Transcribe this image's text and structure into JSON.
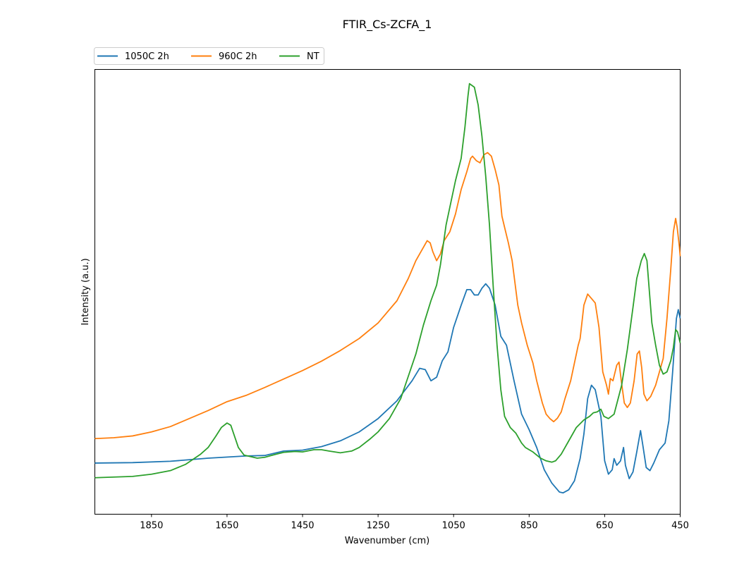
{
  "chart_data": {
    "type": "line",
    "title": "FTIR_Cs-ZCFA_1",
    "xlabel": "Wavenumber (cm)",
    "ylabel": "Intensity (a.u.)",
    "xlim": [
      2000,
      450
    ],
    "x_inverted": true,
    "ylim": [
      0,
      100
    ],
    "yticks_shown": false,
    "grid": false,
    "legend_position": "top-left, above plot",
    "xticks": [
      1850,
      1650,
      1450,
      1250,
      1050,
      850,
      650,
      450
    ],
    "series": [
      {
        "name": "1050C 2h",
        "color": "#1f77b4",
        "points": [
          [
            2000,
            11.5
          ],
          [
            1900,
            11.6
          ],
          [
            1800,
            11.9
          ],
          [
            1700,
            12.6
          ],
          [
            1600,
            13.1
          ],
          [
            1550,
            13.2
          ],
          [
            1500,
            14.2
          ],
          [
            1450,
            14.4
          ],
          [
            1400,
            15.2
          ],
          [
            1350,
            16.5
          ],
          [
            1300,
            18.5
          ],
          [
            1250,
            21.5
          ],
          [
            1200,
            25.5
          ],
          [
            1160,
            30.0
          ],
          [
            1140,
            32.8
          ],
          [
            1125,
            32.5
          ],
          [
            1110,
            30.0
          ],
          [
            1095,
            30.8
          ],
          [
            1080,
            34.5
          ],
          [
            1065,
            36.5
          ],
          [
            1050,
            42.0
          ],
          [
            1030,
            47.0
          ],
          [
            1015,
            50.5
          ],
          [
            1005,
            50.5
          ],
          [
            995,
            49.3
          ],
          [
            985,
            49.3
          ],
          [
            975,
            50.8
          ],
          [
            965,
            51.8
          ],
          [
            955,
            50.8
          ],
          [
            940,
            47.0
          ],
          [
            925,
            40.0
          ],
          [
            910,
            38.0
          ],
          [
            890,
            30.0
          ],
          [
            870,
            22.5
          ],
          [
            850,
            19.0
          ],
          [
            830,
            15.0
          ],
          [
            810,
            10.0
          ],
          [
            790,
            7.0
          ],
          [
            770,
            5.0
          ],
          [
            760,
            4.8
          ],
          [
            745,
            5.5
          ],
          [
            730,
            7.5
          ],
          [
            715,
            12.5
          ],
          [
            705,
            18.0
          ],
          [
            695,
            26.0
          ],
          [
            685,
            29.0
          ],
          [
            675,
            28.0
          ],
          [
            660,
            22.0
          ],
          [
            650,
            12.0
          ],
          [
            640,
            9.0
          ],
          [
            630,
            10.0
          ],
          [
            625,
            12.5
          ],
          [
            618,
            11.0
          ],
          [
            608,
            12.0
          ],
          [
            600,
            15.0
          ],
          [
            595,
            11.0
          ],
          [
            585,
            8.0
          ],
          [
            575,
            9.5
          ],
          [
            565,
            14.0
          ],
          [
            555,
            18.8
          ],
          [
            548,
            15.0
          ],
          [
            540,
            10.5
          ],
          [
            530,
            9.8
          ],
          [
            520,
            11.5
          ],
          [
            505,
            14.5
          ],
          [
            490,
            16.0
          ],
          [
            480,
            21.0
          ],
          [
            470,
            32.0
          ],
          [
            460,
            44.0
          ],
          [
            455,
            46.0
          ],
          [
            450,
            44.0
          ]
        ]
      },
      {
        "name": "960C 2h",
        "color": "#ff7f0e",
        "points": [
          [
            2000,
            17.0
          ],
          [
            1950,
            17.2
          ],
          [
            1900,
            17.6
          ],
          [
            1850,
            18.5
          ],
          [
            1800,
            19.7
          ],
          [
            1750,
            21.5
          ],
          [
            1700,
            23.3
          ],
          [
            1650,
            25.3
          ],
          [
            1600,
            26.7
          ],
          [
            1550,
            28.5
          ],
          [
            1500,
            30.4
          ],
          [
            1450,
            32.3
          ],
          [
            1400,
            34.4
          ],
          [
            1350,
            36.8
          ],
          [
            1300,
            39.5
          ],
          [
            1250,
            43.0
          ],
          [
            1200,
            48.0
          ],
          [
            1170,
            53.0
          ],
          [
            1150,
            57.0
          ],
          [
            1130,
            60.0
          ],
          [
            1120,
            61.5
          ],
          [
            1112,
            61.0
          ],
          [
            1105,
            59.0
          ],
          [
            1095,
            57.0
          ],
          [
            1085,
            58.5
          ],
          [
            1075,
            61.5
          ],
          [
            1060,
            63.5
          ],
          [
            1045,
            67.5
          ],
          [
            1030,
            73.0
          ],
          [
            1015,
            77.0
          ],
          [
            1005,
            80.0
          ],
          [
            1000,
            80.5
          ],
          [
            990,
            79.5
          ],
          [
            980,
            79.0
          ],
          [
            970,
            80.8
          ],
          [
            960,
            81.3
          ],
          [
            950,
            80.5
          ],
          [
            940,
            77.5
          ],
          [
            930,
            74.0
          ],
          [
            922,
            67.0
          ],
          [
            915,
            64.5
          ],
          [
            905,
            61.0
          ],
          [
            895,
            57.0
          ],
          [
            880,
            47.0
          ],
          [
            870,
            43.0
          ],
          [
            855,
            38.0
          ],
          [
            840,
            34.0
          ],
          [
            830,
            30.0
          ],
          [
            815,
            25.0
          ],
          [
            805,
            22.5
          ],
          [
            795,
            21.5
          ],
          [
            785,
            20.8
          ],
          [
            775,
            21.6
          ],
          [
            765,
            23.0
          ],
          [
            755,
            26.0
          ],
          [
            740,
            30.0
          ],
          [
            730,
            34.0
          ],
          [
            720,
            38.0
          ],
          [
            715,
            39.5
          ],
          [
            705,
            47.0
          ],
          [
            695,
            49.5
          ],
          [
            685,
            48.5
          ],
          [
            675,
            47.5
          ],
          [
            665,
            42.0
          ],
          [
            655,
            32.0
          ],
          [
            645,
            29.0
          ],
          [
            640,
            27.0
          ],
          [
            635,
            30.5
          ],
          [
            628,
            30.0
          ],
          [
            618,
            33.5
          ],
          [
            612,
            34.2
          ],
          [
            606,
            30.0
          ],
          [
            598,
            25.0
          ],
          [
            590,
            24.0
          ],
          [
            582,
            25.0
          ],
          [
            572,
            30.0
          ],
          [
            564,
            36.0
          ],
          [
            558,
            36.7
          ],
          [
            552,
            33.0
          ],
          [
            546,
            27.0
          ],
          [
            538,
            25.5
          ],
          [
            528,
            26.5
          ],
          [
            515,
            29.0
          ],
          [
            505,
            32.0
          ],
          [
            495,
            35.0
          ],
          [
            485,
            44.0
          ],
          [
            475,
            55.0
          ],
          [
            468,
            63.5
          ],
          [
            462,
            66.5
          ],
          [
            458,
            64.5
          ],
          [
            452,
            60.0
          ],
          [
            450,
            58.0
          ]
        ]
      },
      {
        "name": "NT",
        "color": "#2ca02c",
        "points": [
          [
            2000,
            8.2
          ],
          [
            1900,
            8.5
          ],
          [
            1850,
            9.0
          ],
          [
            1800,
            9.8
          ],
          [
            1760,
            11.2
          ],
          [
            1720,
            13.5
          ],
          [
            1700,
            15.0
          ],
          [
            1680,
            17.5
          ],
          [
            1665,
            19.5
          ],
          [
            1650,
            20.5
          ],
          [
            1640,
            20.0
          ],
          [
            1630,
            17.5
          ],
          [
            1620,
            15.0
          ],
          [
            1605,
            13.3
          ],
          [
            1590,
            13.0
          ],
          [
            1570,
            12.6
          ],
          [
            1550,
            12.8
          ],
          [
            1520,
            13.5
          ],
          [
            1500,
            13.9
          ],
          [
            1470,
            14.1
          ],
          [
            1450,
            14.0
          ],
          [
            1420,
            14.5
          ],
          [
            1400,
            14.5
          ],
          [
            1380,
            14.2
          ],
          [
            1350,
            13.8
          ],
          [
            1320,
            14.2
          ],
          [
            1300,
            15.0
          ],
          [
            1270,
            17.0
          ],
          [
            1250,
            18.5
          ],
          [
            1220,
            21.5
          ],
          [
            1190,
            26.0
          ],
          [
            1170,
            31.0
          ],
          [
            1150,
            36.0
          ],
          [
            1130,
            42.5
          ],
          [
            1110,
            48.0
          ],
          [
            1095,
            51.5
          ],
          [
            1085,
            56.0
          ],
          [
            1070,
            65.0
          ],
          [
            1060,
            69.0
          ],
          [
            1045,
            75.0
          ],
          [
            1030,
            80.0
          ],
          [
            1020,
            87.0
          ],
          [
            1012,
            94.0
          ],
          [
            1008,
            96.8
          ],
          [
            1003,
            96.5
          ],
          [
            995,
            96.0
          ],
          [
            985,
            92.0
          ],
          [
            975,
            85.0
          ],
          [
            965,
            76.0
          ],
          [
            955,
            65.0
          ],
          [
            945,
            51.0
          ],
          [
            935,
            38.0
          ],
          [
            925,
            28.0
          ],
          [
            915,
            22.0
          ],
          [
            900,
            19.5
          ],
          [
            885,
            18.2
          ],
          [
            870,
            16.0
          ],
          [
            860,
            15.0
          ],
          [
            840,
            14.0
          ],
          [
            820,
            12.6
          ],
          [
            805,
            12.0
          ],
          [
            790,
            11.7
          ],
          [
            780,
            12.0
          ],
          [
            765,
            13.5
          ],
          [
            745,
            16.5
          ],
          [
            725,
            19.5
          ],
          [
            705,
            21.2
          ],
          [
            690,
            22.0
          ],
          [
            680,
            22.8
          ],
          [
            670,
            23.0
          ],
          [
            660,
            23.6
          ],
          [
            652,
            22.0
          ],
          [
            640,
            21.5
          ],
          [
            625,
            22.5
          ],
          [
            605,
            29.0
          ],
          [
            590,
            37.0
          ],
          [
            575,
            46.5
          ],
          [
            565,
            53.0
          ],
          [
            553,
            57.0
          ],
          [
            545,
            58.6
          ],
          [
            538,
            57.0
          ],
          [
            525,
            43.0
          ],
          [
            515,
            38.0
          ],
          [
            505,
            33.5
          ],
          [
            495,
            31.5
          ],
          [
            485,
            32.0
          ],
          [
            475,
            34.5
          ],
          [
            468,
            37.5
          ],
          [
            462,
            41.5
          ],
          [
            457,
            41.0
          ],
          [
            450,
            38.5
          ]
        ]
      }
    ]
  }
}
